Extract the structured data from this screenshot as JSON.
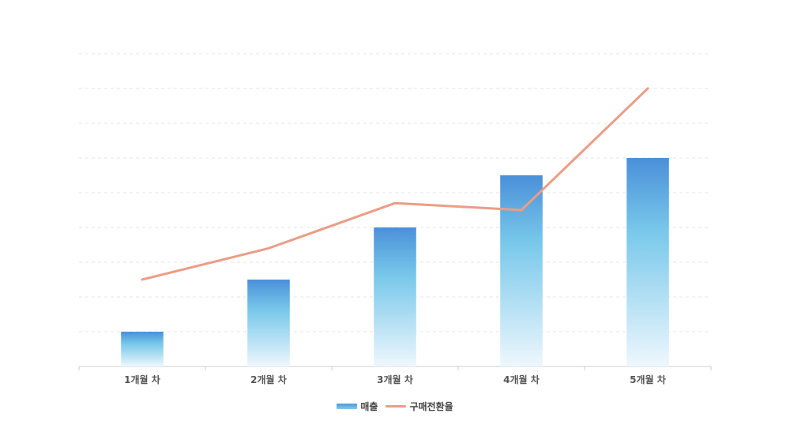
{
  "chart_data": {
    "type": "bar",
    "categories": [
      "1개월 차",
      "2개월 차",
      "3개월 차",
      "4개월 차",
      "5개월 차"
    ],
    "series": [
      {
        "name": "매출",
        "type": "bar",
        "values": [
          1,
          2.5,
          4,
          5.5,
          6
        ],
        "color_top": "#4a90d9",
        "color_mid": "#78c8ea",
        "color_bottom": "#eef7fd"
      },
      {
        "name": "구매전환율",
        "type": "line",
        "values": [
          2.5,
          3.4,
          4.7,
          4.5,
          8
        ],
        "color": "#eb9d86"
      }
    ],
    "ylim": [
      0,
      9
    ],
    "grid": true,
    "legend": "bottom-center",
    "title": "",
    "xlabel": "",
    "ylabel": ""
  }
}
